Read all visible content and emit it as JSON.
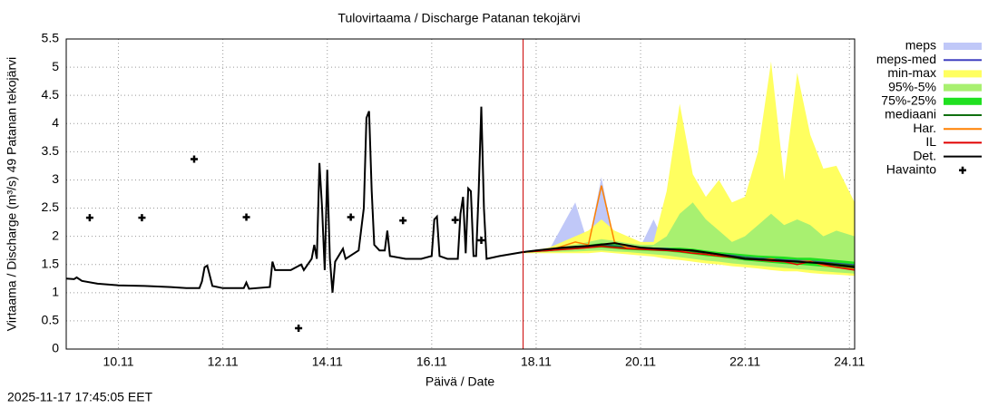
{
  "chart_data": {
    "type": "line",
    "title": "Tulovirtaama / Discharge  Patanan tekojärvi",
    "xlabel": "Päivä / Date",
    "ylabel": "Virtaama / Discharge (m³/s)  49 Patanan tekojärvi",
    "timestamp": "2025-11-17 17:45:05 EET",
    "now": 17.75,
    "now_color": "#cc0000",
    "xlim": [
      9,
      24.1
    ],
    "xticks": [
      {
        "value": 10,
        "label": "10.11"
      },
      {
        "value": 12,
        "label": "12.11"
      },
      {
        "value": 14,
        "label": "14.11"
      },
      {
        "value": 16,
        "label": "16.11"
      },
      {
        "value": 18,
        "label": "18.11"
      },
      {
        "value": 20,
        "label": "20.11"
      },
      {
        "value": 22,
        "label": "22.11"
      },
      {
        "value": 24,
        "label": "24.11"
      }
    ],
    "ylim": [
      0,
      5.5
    ],
    "yticks": [
      0,
      0.5,
      1,
      1.5,
      2,
      2.5,
      3,
      3.5,
      4,
      4.5,
      5,
      5.5
    ],
    "grid": true,
    "series": [
      {
        "name": "meps",
        "kind": "band",
        "color": "#c0c8f8",
        "x": [
          17.75,
          18.25,
          18.75,
          19.0,
          19.25,
          19.5,
          19.75,
          20.0,
          20.25,
          20.5,
          20.75,
          21.0,
          21.25,
          21.5,
          21.75,
          22.0,
          22.25,
          22.5,
          22.75,
          23.0,
          23.25,
          23.5,
          23.75,
          24.1
        ],
        "low": [
          1.71,
          1.74,
          1.77,
          1.79,
          1.8,
          1.78,
          1.76,
          1.75,
          1.74,
          1.73,
          1.71,
          1.68,
          1.65,
          1.63,
          1.6,
          1.57,
          1.55,
          1.53,
          1.51,
          1.5,
          1.48,
          1.46,
          1.44,
          1.42
        ],
        "high": [
          1.72,
          1.76,
          2.6,
          1.85,
          3.05,
          1.86,
          1.83,
          1.82,
          2.3,
          1.8,
          1.8,
          1.78,
          1.75,
          1.72,
          1.7,
          1.68,
          1.66,
          1.65,
          1.64,
          1.62,
          1.62,
          1.6,
          1.58,
          1.55
        ]
      },
      {
        "name": "meps-med",
        "kind": "line",
        "color": "#4040c0",
        "x": [
          17.75,
          18.25,
          18.75,
          19.0,
          19.25,
          19.5,
          19.75,
          20.0,
          20.25,
          20.5,
          20.75,
          21.0,
          21.25,
          21.5,
          21.75,
          22.0,
          22.25,
          22.5,
          22.75,
          23.0,
          23.25,
          23.5,
          23.75,
          24.1
        ],
        "values": [
          1.72,
          1.76,
          1.81,
          1.83,
          1.85,
          1.83,
          1.81,
          1.8,
          1.79,
          1.78,
          1.76,
          1.74,
          1.71,
          1.68,
          1.66,
          1.63,
          1.61,
          1.6,
          1.58,
          1.57,
          1.56,
          1.54,
          1.52,
          1.49
        ]
      },
      {
        "name": "min-max",
        "kind": "band",
        "color": "#ffff60",
        "x": [
          17.75,
          18.25,
          18.75,
          19.0,
          19.25,
          19.5,
          19.75,
          20.0,
          20.25,
          20.5,
          20.75,
          21.0,
          21.25,
          21.5,
          21.75,
          22.0,
          22.25,
          22.5,
          22.75,
          23.0,
          23.25,
          23.5,
          23.75,
          24.1
        ],
        "low": [
          1.7,
          1.7,
          1.7,
          1.7,
          1.72,
          1.7,
          1.68,
          1.66,
          1.64,
          1.6,
          1.58,
          1.55,
          1.52,
          1.5,
          1.47,
          1.45,
          1.43,
          1.4,
          1.38,
          1.38,
          1.35,
          1.33,
          1.32,
          1.3
        ],
        "high": [
          1.72,
          1.8,
          2.0,
          2.1,
          2.3,
          2.1,
          2.0,
          1.9,
          1.9,
          2.8,
          4.35,
          3.1,
          2.7,
          3.0,
          2.6,
          2.7,
          3.5,
          5.1,
          3.0,
          4.9,
          3.8,
          3.2,
          3.25,
          2.6
        ]
      },
      {
        "name": "95%-5%",
        "kind": "band",
        "color": "#a8f070",
        "x": [
          17.75,
          18.25,
          18.75,
          19.0,
          19.25,
          19.5,
          19.75,
          20.0,
          20.25,
          20.5,
          20.75,
          21.0,
          21.25,
          21.5,
          21.75,
          22.0,
          22.25,
          22.5,
          22.75,
          23.0,
          23.25,
          23.5,
          23.75,
          24.1
        ],
        "low": [
          1.71,
          1.72,
          1.73,
          1.74,
          1.75,
          1.73,
          1.72,
          1.7,
          1.68,
          1.66,
          1.63,
          1.6,
          1.57,
          1.55,
          1.52,
          1.5,
          1.48,
          1.46,
          1.44,
          1.42,
          1.4,
          1.38,
          1.36,
          1.34
        ],
        "high": [
          1.72,
          1.78,
          1.85,
          1.9,
          1.95,
          1.92,
          1.88,
          1.85,
          1.85,
          2.0,
          2.4,
          2.6,
          2.3,
          2.1,
          1.9,
          2.0,
          2.2,
          2.4,
          2.2,
          2.3,
          2.2,
          2.0,
          2.1,
          2.0
        ]
      },
      {
        "name": "75%-25%",
        "kind": "band",
        "color": "#20e020",
        "x": [
          17.75,
          18.25,
          18.75,
          19.0,
          19.25,
          19.5,
          19.75,
          20.0,
          20.25,
          20.5,
          20.75,
          21.0,
          21.25,
          21.5,
          21.75,
          22.0,
          22.25,
          22.5,
          22.75,
          23.0,
          23.25,
          23.5,
          23.75,
          24.1
        ],
        "low": [
          1.71,
          1.74,
          1.77,
          1.79,
          1.8,
          1.78,
          1.76,
          1.75,
          1.74,
          1.73,
          1.71,
          1.68,
          1.65,
          1.63,
          1.6,
          1.57,
          1.55,
          1.53,
          1.51,
          1.5,
          1.48,
          1.46,
          1.44,
          1.42
        ],
        "high": [
          1.72,
          1.76,
          1.82,
          1.85,
          1.88,
          1.86,
          1.83,
          1.82,
          1.8,
          1.8,
          1.8,
          1.78,
          1.75,
          1.72,
          1.7,
          1.68,
          1.66,
          1.65,
          1.64,
          1.62,
          1.62,
          1.6,
          1.58,
          1.55
        ]
      },
      {
        "name": "mediaani",
        "kind": "line",
        "color": "#107010",
        "x": [
          17.75,
          18.25,
          18.75,
          19.0,
          19.25,
          19.5,
          19.75,
          20.0,
          20.25,
          20.5,
          20.75,
          21.0,
          21.25,
          21.5,
          21.75,
          22.0,
          22.25,
          22.5,
          22.75,
          23.0,
          23.25,
          23.5,
          23.75,
          24.1
        ],
        "values": [
          1.72,
          1.75,
          1.8,
          1.82,
          1.84,
          1.82,
          1.8,
          1.79,
          1.78,
          1.77,
          1.76,
          1.73,
          1.7,
          1.68,
          1.65,
          1.62,
          1.6,
          1.59,
          1.57,
          1.56,
          1.55,
          1.53,
          1.51,
          1.48
        ]
      },
      {
        "name": "Har.",
        "kind": "line",
        "color": "#ff8000",
        "x": [
          17.75,
          18.25,
          18.75,
          19.0,
          19.25,
          19.5,
          19.75,
          20.0,
          20.25,
          20.5,
          20.75,
          21.0,
          21.25,
          21.5,
          21.75,
          22.0,
          22.25,
          22.5,
          22.75,
          23.0,
          23.25,
          23.5,
          23.75,
          24.1
        ],
        "values": [
          1.72,
          1.75,
          1.9,
          1.85,
          2.9,
          1.9,
          1.8,
          1.78,
          1.77,
          1.76,
          1.74,
          1.7,
          1.68,
          1.65,
          1.63,
          1.6,
          1.58,
          1.6,
          1.55,
          1.55,
          1.56,
          1.48,
          1.45,
          1.42
        ]
      },
      {
        "name": "IL",
        "kind": "line",
        "color": "#e00000",
        "x": [
          17.75,
          18.25,
          18.75,
          19.0,
          19.25,
          19.5,
          19.75,
          20.0,
          20.25,
          20.5,
          20.75,
          21.0,
          21.25,
          21.5,
          21.75,
          22.0,
          22.25,
          22.5,
          22.75,
          23.0,
          23.25,
          23.5,
          23.75,
          24.1
        ],
        "values": [
          1.72,
          1.75,
          1.78,
          1.8,
          1.82,
          1.8,
          1.78,
          1.77,
          1.76,
          1.75,
          1.73,
          1.7,
          1.68,
          1.65,
          1.63,
          1.6,
          1.58,
          1.56,
          1.55,
          1.5,
          1.55,
          1.5,
          1.45,
          1.4
        ]
      },
      {
        "name": "Det.",
        "kind": "line",
        "color": "#000000",
        "x": [
          9.0,
          9.15,
          9.2,
          9.3,
          9.6,
          10.0,
          10.5,
          11.0,
          11.3,
          11.55,
          11.6,
          11.65,
          11.7,
          11.75,
          11.8,
          12.0,
          12.4,
          12.45,
          12.5,
          12.9,
          12.95,
          13.0,
          13.3,
          13.5,
          13.55,
          13.7,
          13.75,
          13.8,
          13.85,
          13.9,
          13.95,
          14.0,
          14.05,
          14.1,
          14.15,
          14.3,
          14.35,
          14.6,
          14.7,
          14.75,
          14.8,
          14.85,
          14.9,
          15.0,
          15.1,
          15.15,
          15.2,
          15.5,
          15.8,
          16.0,
          16.05,
          16.1,
          16.15,
          16.3,
          16.5,
          16.55,
          16.6,
          16.65,
          16.7,
          16.75,
          16.8,
          16.85,
          16.9,
          16.95,
          17.0,
          17.05,
          17.3,
          17.75,
          18.0,
          18.5,
          19.0,
          19.5,
          20.0,
          20.5,
          21.0,
          21.5,
          22.0,
          22.5,
          23.0,
          23.5,
          24.1
        ],
        "values": [
          1.25,
          1.24,
          1.27,
          1.21,
          1.16,
          1.13,
          1.12,
          1.1,
          1.08,
          1.08,
          1.2,
          1.45,
          1.48,
          1.3,
          1.12,
          1.08,
          1.08,
          1.18,
          1.07,
          1.1,
          1.55,
          1.4,
          1.4,
          1.5,
          1.4,
          1.6,
          1.85,
          1.6,
          3.3,
          2.5,
          1.4,
          3.18,
          1.6,
          1.0,
          1.55,
          1.78,
          1.6,
          1.75,
          2.5,
          4.1,
          4.22,
          2.8,
          1.85,
          1.75,
          1.75,
          2.1,
          1.65,
          1.6,
          1.6,
          1.65,
          2.3,
          2.35,
          1.65,
          1.6,
          1.6,
          2.4,
          2.7,
          1.7,
          2.85,
          2.8,
          1.65,
          1.65,
          2.8,
          4.3,
          2.5,
          1.6,
          1.65,
          1.72,
          1.75,
          1.8,
          1.83,
          1.88,
          1.8,
          1.77,
          1.75,
          1.68,
          1.6,
          1.58,
          1.55,
          1.52,
          1.45
        ]
      },
      {
        "name": "Havainto",
        "kind": "points",
        "color": "#000000",
        "x": [
          9.45,
          10.45,
          11.45,
          12.45,
          13.45,
          14.45,
          15.45,
          16.45,
          16.95
        ],
        "values": [
          2.33,
          2.33,
          3.37,
          2.34,
          0.37,
          2.34,
          2.28,
          2.29,
          1.93
        ]
      }
    ]
  }
}
